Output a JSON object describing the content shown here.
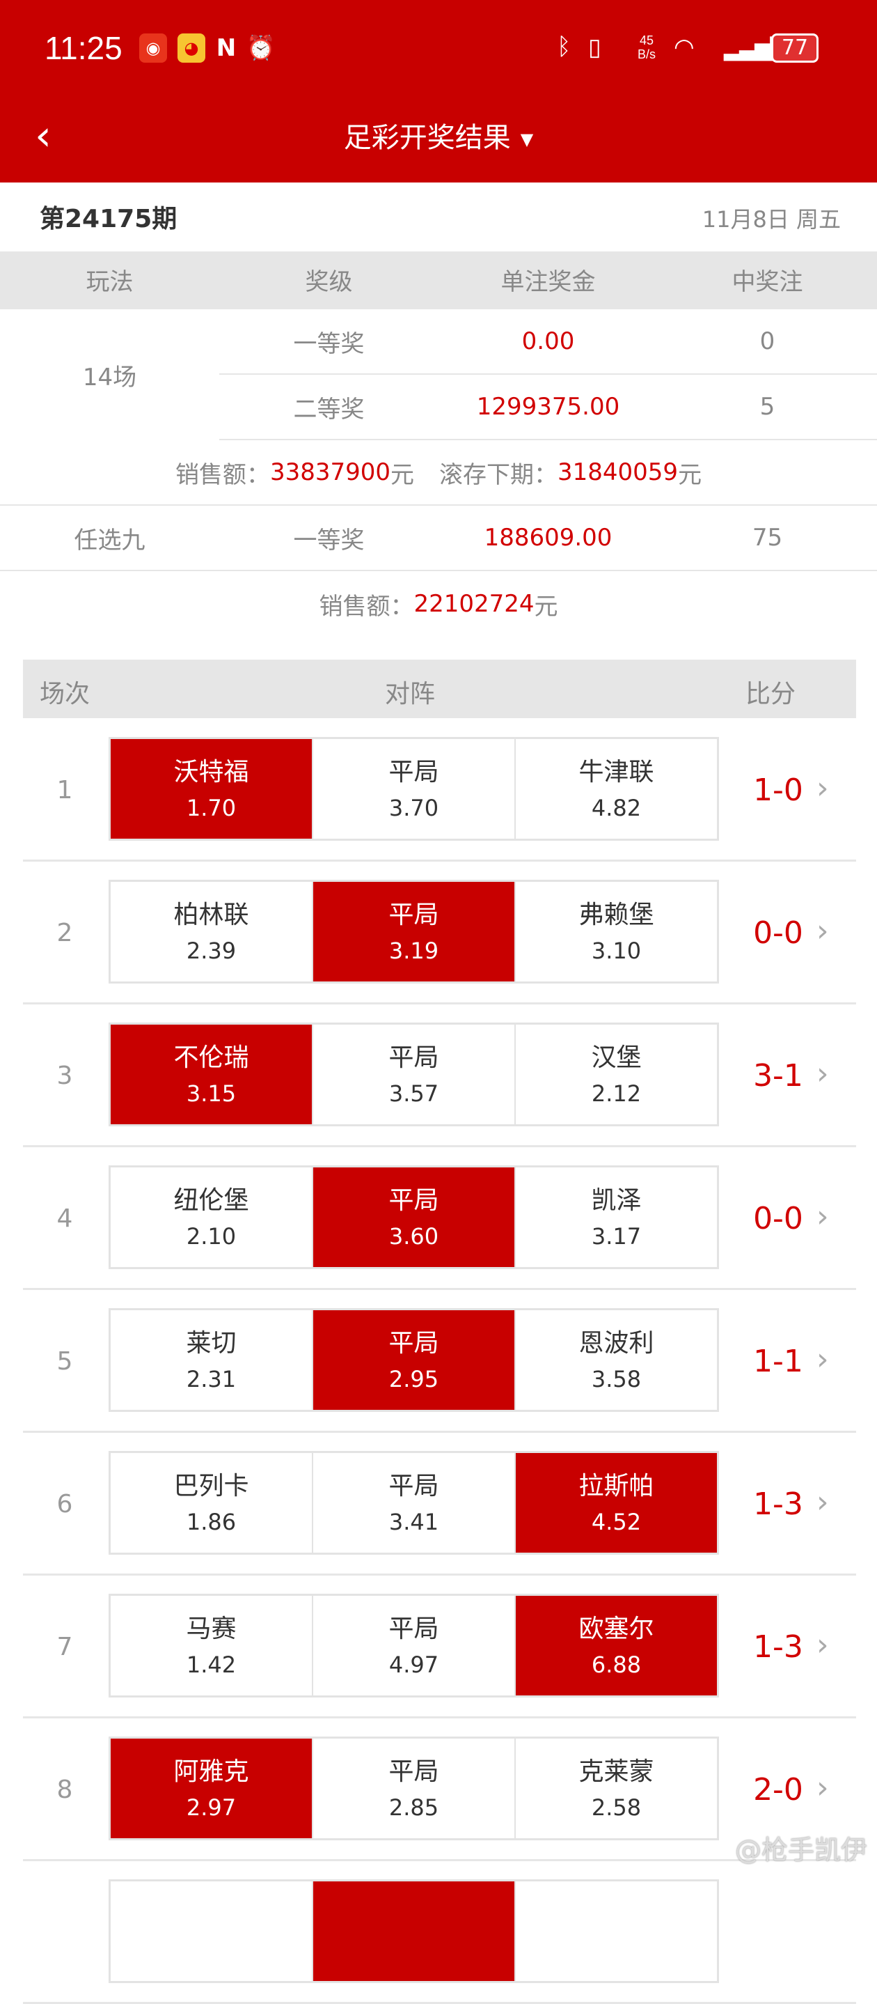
{
  "status_bar": {
    "time": "11:25",
    "network_speed": "45 B/s",
    "battery": "77",
    "icons": [
      "app-notification-icon",
      "weibo-icon",
      "nfc-icon",
      "alarm-icon",
      "bluetooth-icon",
      "vibrate-icon",
      "wifi-icon",
      "signal-icon",
      "battery-icon"
    ]
  },
  "header": {
    "title": "足彩开奖结果",
    "back_icon": "chevron-left-icon",
    "dropdown_icon": "triangle-down-icon"
  },
  "period": {
    "label": "第24175期",
    "date": "11月8日 周五"
  },
  "prize_table": {
    "headers": [
      "玩法",
      "奖级",
      "单注奖金",
      "中奖注"
    ],
    "game14": {
      "name": "14场",
      "rows": [
        {
          "level": "一等奖",
          "amount": "0.00",
          "count": "0"
        },
        {
          "level": "二等奖",
          "amount": "1299375.00",
          "count": "5"
        }
      ],
      "sales_label": "销售额：",
      "sales": "33837900",
      "unit": "元",
      "rollover_label": "滚存下期：",
      "rollover": "31840059"
    },
    "ren9": {
      "name": "任选九",
      "level": "一等奖",
      "amount": "188609.00",
      "count": "75",
      "sales_label": "销售额：",
      "sales": "22102724",
      "unit": "元"
    }
  },
  "match_header": [
    "场次",
    "对阵",
    "比分"
  ],
  "matches": [
    {
      "no": "1",
      "home": "沃特福",
      "home_odds": "1.70",
      "draw": "平局",
      "draw_odds": "3.70",
      "away": "牛津联",
      "away_odds": "4.82",
      "score": "1-0",
      "result": "home"
    },
    {
      "no": "2",
      "home": "柏林联",
      "home_odds": "2.39",
      "draw": "平局",
      "draw_odds": "3.19",
      "away": "弗赖堡",
      "away_odds": "3.10",
      "score": "0-0",
      "result": "draw"
    },
    {
      "no": "3",
      "home": "不伦瑞",
      "home_odds": "3.15",
      "draw": "平局",
      "draw_odds": "3.57",
      "away": "汉堡",
      "away_odds": "2.12",
      "score": "3-1",
      "result": "home"
    },
    {
      "no": "4",
      "home": "纽伦堡",
      "home_odds": "2.10",
      "draw": "平局",
      "draw_odds": "3.60",
      "away": "凯泽",
      "away_odds": "3.17",
      "score": "0-0",
      "result": "draw"
    },
    {
      "no": "5",
      "home": "莱切",
      "home_odds": "2.31",
      "draw": "平局",
      "draw_odds": "2.95",
      "away": "恩波利",
      "away_odds": "3.58",
      "score": "1-1",
      "result": "draw"
    },
    {
      "no": "6",
      "home": "巴列卡",
      "home_odds": "1.86",
      "draw": "平局",
      "draw_odds": "3.41",
      "away": "拉斯帕",
      "away_odds": "4.52",
      "score": "1-3",
      "result": "away"
    },
    {
      "no": "7",
      "home": "马赛",
      "home_odds": "1.42",
      "draw": "平局",
      "draw_odds": "4.97",
      "away": "欧塞尔",
      "away_odds": "6.88",
      "score": "1-3",
      "result": "away"
    },
    {
      "no": "8",
      "home": "阿雅克",
      "home_odds": "2.97",
      "draw": "平局",
      "draw_odds": "2.85",
      "away": "克莱蒙",
      "away_odds": "2.58",
      "score": "2-0",
      "result": "home"
    },
    {
      "result": "draw"
    }
  ],
  "watermark": "@枪手凯伊",
  "colors": {
    "brand_red": "#c80000",
    "text_red": "#d10000",
    "header_gray": "#e6e6e6"
  }
}
